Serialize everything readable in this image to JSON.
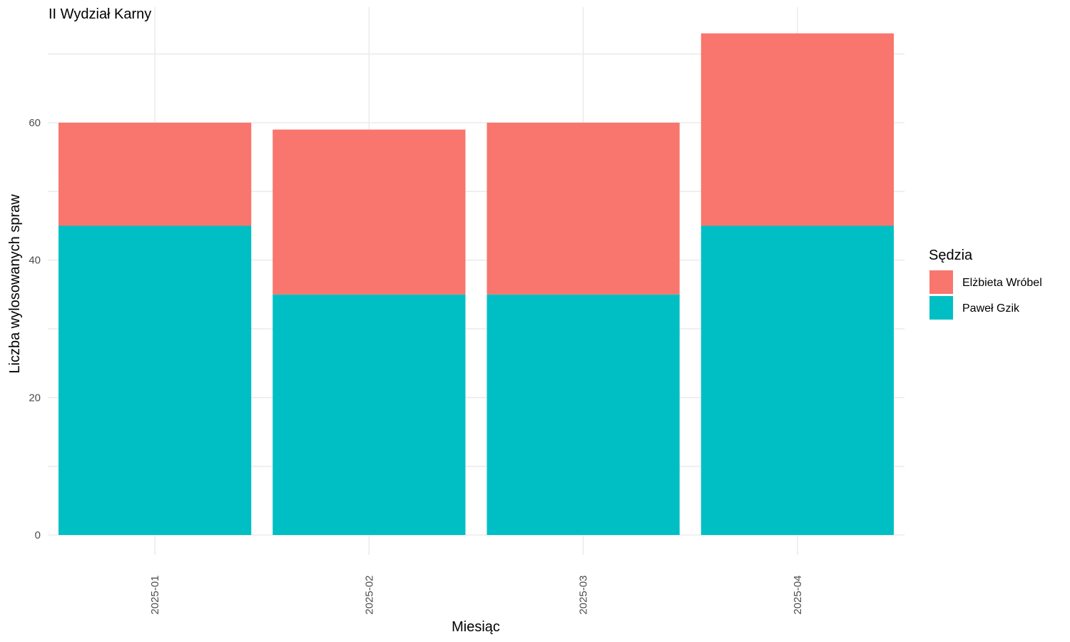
{
  "chart_data": {
    "type": "bar",
    "stacked": true,
    "title": "II Wydział Karny",
    "xlabel": "Miesiąc",
    "ylabel": "Liczba wylosowanych spraw",
    "categories": [
      "2025-01",
      "2025-02",
      "2025-03",
      "2025-04"
    ],
    "series": [
      {
        "name": "Paweł Gzik",
        "values": [
          45,
          35,
          35,
          45
        ],
        "color": "#00BFC4"
      },
      {
        "name": "Elżbieta Wróbel",
        "values": [
          15,
          24,
          25,
          28
        ],
        "color": "#F8766D"
      }
    ],
    "ylim": [
      0,
      73
    ],
    "yticks": [
      0,
      20,
      40,
      60
    ],
    "grid": true,
    "legend": {
      "title": "Sędzia",
      "position": "right",
      "order": [
        "Elżbieta Wróbel",
        "Paweł Gzik"
      ]
    }
  }
}
